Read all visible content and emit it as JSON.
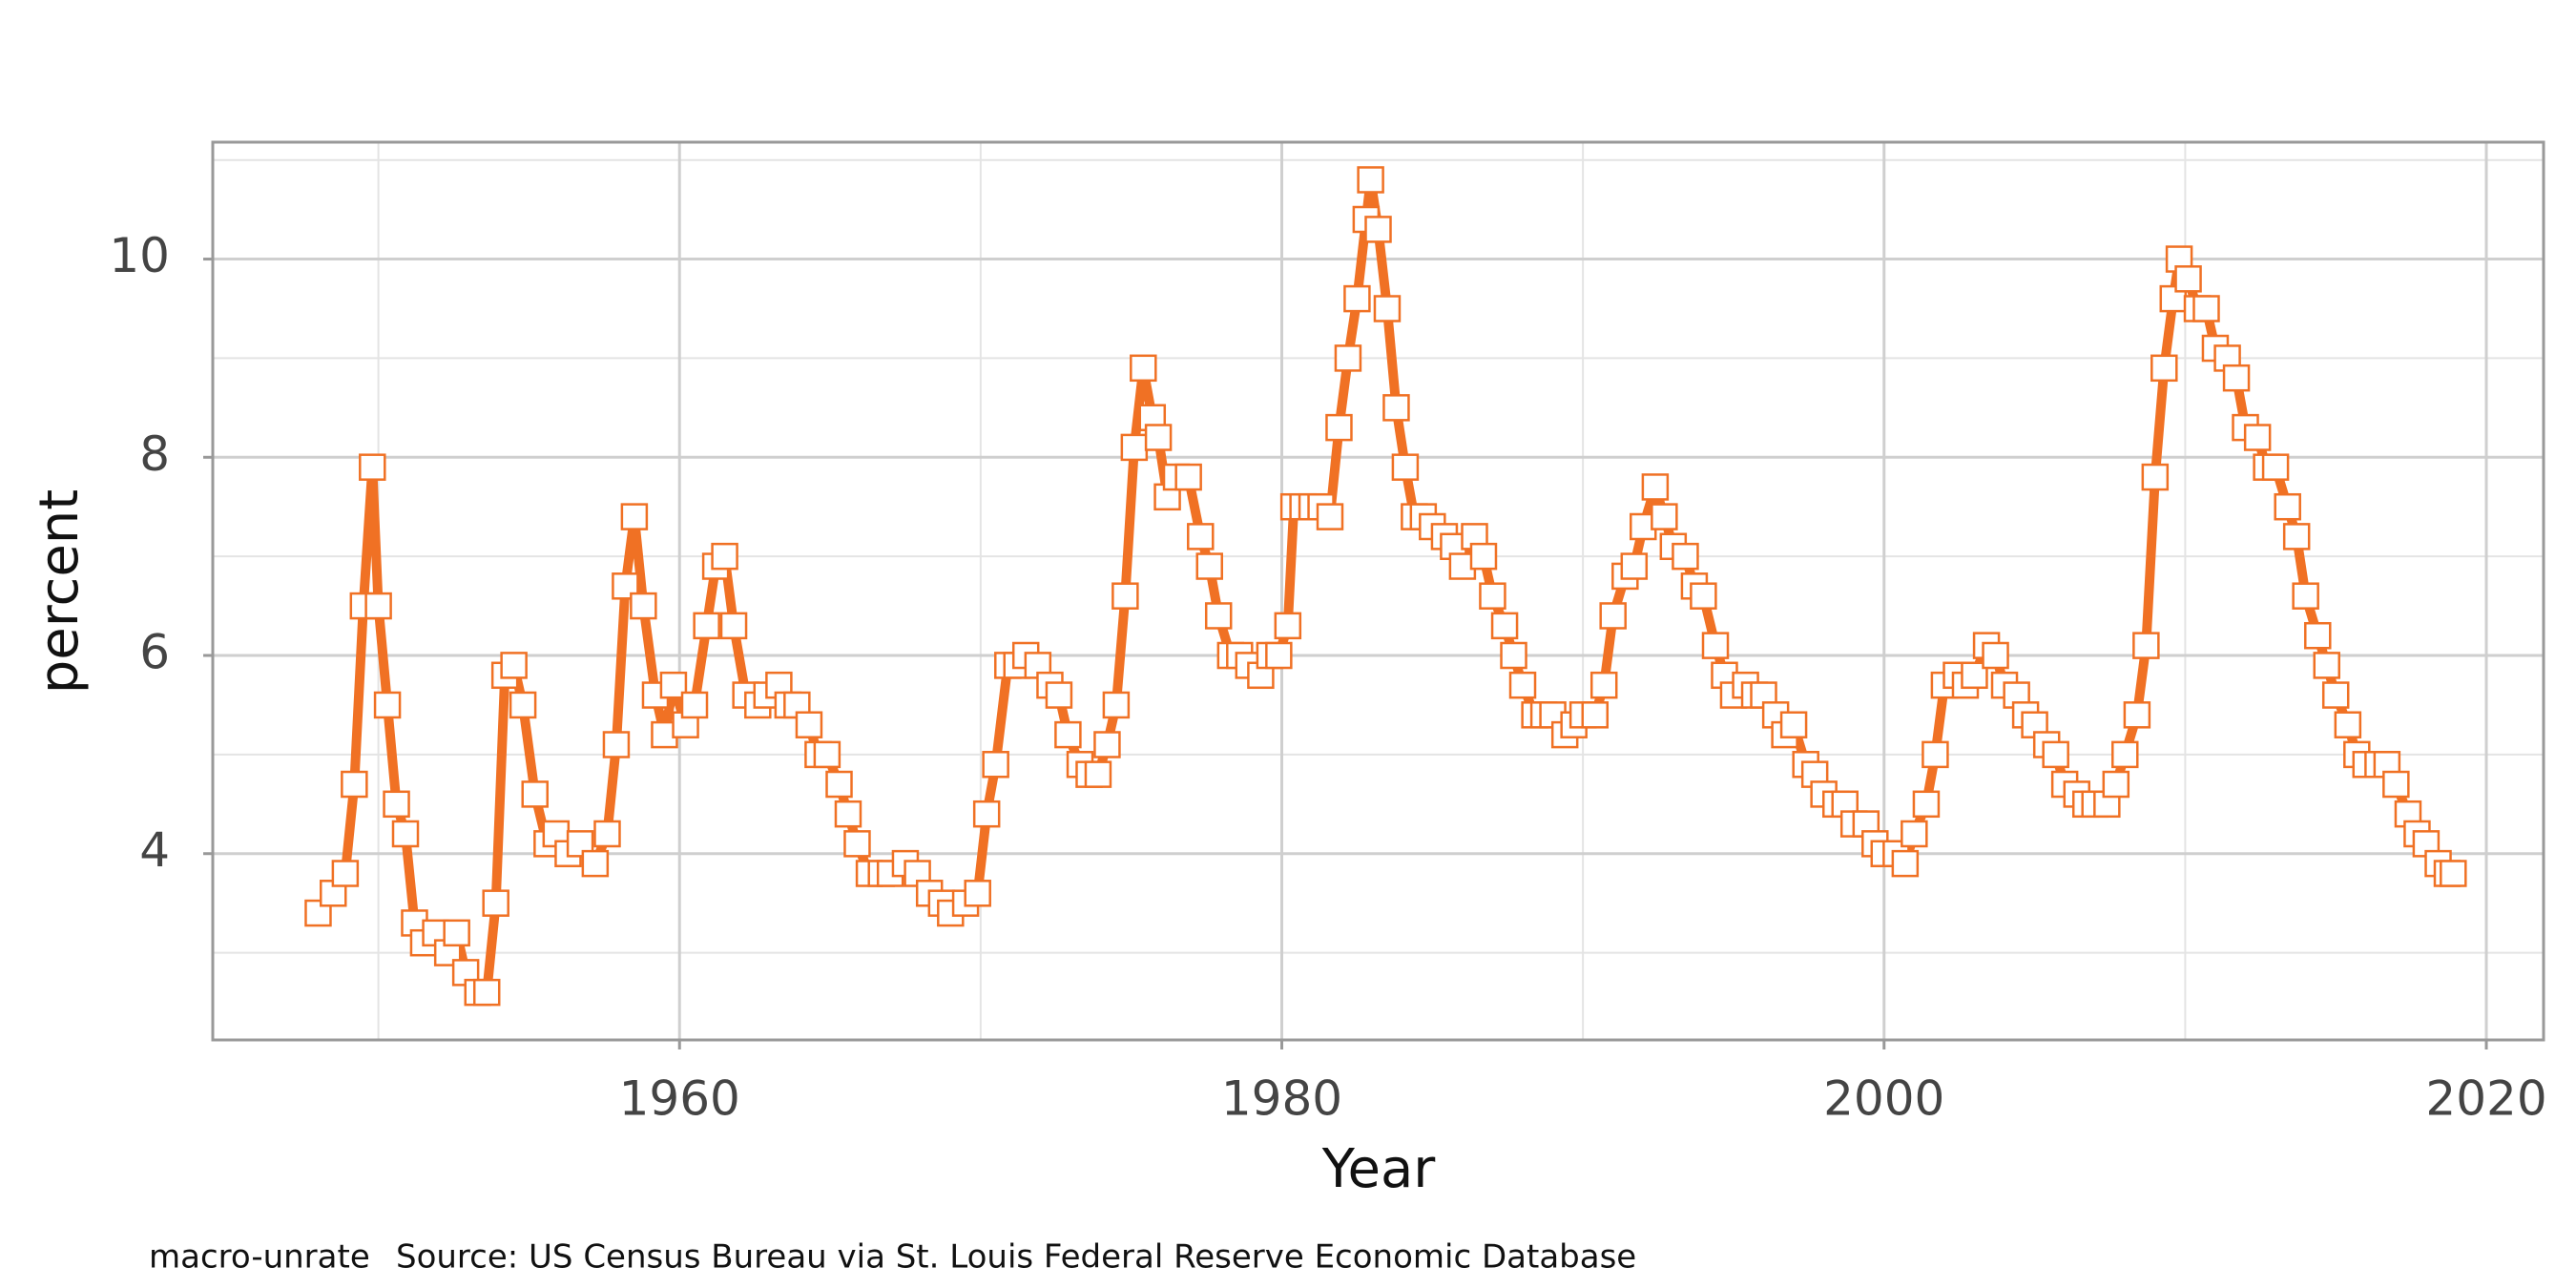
{
  "chart_data": {
    "type": "line",
    "xlabel": "Year",
    "ylabel": "percent",
    "caption": "macro-unrate",
    "source": "Source: US Census Bureau via St. Louis Federal Reserve Economic Database",
    "xlim": [
      1944.5,
      2021.9
    ],
    "ylim": [
      2.12,
      11.18
    ],
    "xticks": [
      1960,
      1980,
      2000,
      2020
    ],
    "yticks": [
      4,
      6,
      8,
      10
    ],
    "xminor": [
      1950,
      1970,
      1990,
      2010
    ],
    "yminor": [
      3,
      5,
      7,
      9,
      11
    ],
    "grid": true,
    "series": [
      {
        "color": "#f07124",
        "x": [
          1948.0,
          1948.5,
          1948.9,
          1949.2,
          1949.5,
          1949.8,
          1950.0,
          1950.3,
          1950.6,
          1950.9,
          1951.2,
          1951.5,
          1951.9,
          1952.3,
          1952.6,
          1952.9,
          1953.3,
          1953.6,
          1953.9,
          1954.2,
          1954.5,
          1954.8,
          1955.2,
          1955.6,
          1955.9,
          1956.3,
          1956.7,
          1957.2,
          1957.6,
          1957.9,
          1958.2,
          1958.5,
          1958.8,
          1959.2,
          1959.5,
          1959.8,
          1960.2,
          1960.5,
          1960.9,
          1961.2,
          1961.5,
          1961.8,
          1962.2,
          1962.6,
          1962.9,
          1963.3,
          1963.6,
          1963.9,
          1964.3,
          1964.6,
          1964.9,
          1965.3,
          1965.6,
          1965.9,
          1966.3,
          1966.7,
          1967.0,
          1967.5,
          1967.9,
          1968.3,
          1968.7,
          1969.0,
          1969.5,
          1969.9,
          1970.2,
          1970.5,
          1970.9,
          1971.2,
          1971.5,
          1971.9,
          1972.3,
          1972.6,
          1972.9,
          1973.3,
          1973.6,
          1973.9,
          1974.2,
          1974.5,
          1974.8,
          1975.1,
          1975.4,
          1975.7,
          1975.9,
          1976.2,
          1976.5,
          1976.9,
          1977.3,
          1977.6,
          1977.9,
          1978.3,
          1978.6,
          1978.9,
          1979.3,
          1979.6,
          1979.9,
          1980.2,
          1980.4,
          1980.7,
          1981.0,
          1981.3,
          1981.6,
          1981.9,
          1982.2,
          1982.5,
          1982.8,
          1982.95,
          1983.2,
          1983.5,
          1983.8,
          1984.1,
          1984.4,
          1984.7,
          1985.0,
          1985.4,
          1985.7,
          1986.0,
          1986.4,
          1986.7,
          1987.0,
          1987.4,
          1987.7,
          1988.0,
          1988.4,
          1988.7,
          1989.0,
          1989.4,
          1989.7,
          1990.0,
          1990.4,
          1990.7,
          1991.0,
          1991.4,
          1991.7,
          1992.0,
          1992.4,
          1992.7,
          1993.0,
          1993.4,
          1993.7,
          1994.0,
          1994.4,
          1994.7,
          1995.0,
          1995.4,
          1995.7,
          1996.0,
          1996.4,
          1996.7,
          1997.0,
          1997.4,
          1997.7,
          1998.0,
          1998.4,
          1998.7,
          1999.0,
          1999.4,
          1999.7,
          2000.0,
          2000.4,
          2000.7,
          2001.0,
          2001.4,
          2001.7,
          2002.0,
          2002.4,
          2002.7,
          2003.0,
          2003.4,
          2003.7,
          2004.0,
          2004.4,
          2004.7,
          2005.0,
          2005.4,
          2005.7,
          2006.0,
          2006.4,
          2006.7,
          2007.0,
          2007.4,
          2007.7,
          2008.0,
          2008.4,
          2008.7,
          2009.0,
          2009.3,
          2009.6,
          2009.8,
          2010.1,
          2010.4,
          2010.7,
          2011.0,
          2011.4,
          2011.7,
          2012.0,
          2012.4,
          2012.7,
          2013.0,
          2013.4,
          2013.7,
          2014.0,
          2014.4,
          2014.7,
          2015.0,
          2015.4,
          2015.7,
          2016.0,
          2016.4,
          2016.7,
          2017.0,
          2017.4,
          2017.7,
          2018.0,
          2018.4,
          2018.7,
          2018.9
        ],
        "values": [
          3.4,
          3.6,
          3.8,
          4.7,
          6.5,
          7.9,
          6.5,
          5.5,
          4.5,
          4.2,
          3.3,
          3.1,
          3.2,
          3.0,
          3.2,
          2.8,
          2.6,
          2.6,
          3.5,
          5.8,
          5.9,
          5.5,
          4.6,
          4.1,
          4.2,
          4.0,
          4.1,
          3.9,
          4.2,
          5.1,
          6.7,
          7.4,
          6.5,
          5.6,
          5.2,
          5.7,
          5.3,
          5.5,
          6.3,
          6.9,
          7.0,
          6.3,
          5.6,
          5.5,
          5.6,
          5.7,
          5.5,
          5.5,
          5.3,
          5.0,
          5.0,
          4.7,
          4.4,
          4.1,
          3.8,
          3.8,
          3.8,
          3.9,
          3.8,
          3.6,
          3.5,
          3.4,
          3.5,
          3.6,
          4.4,
          4.9,
          5.9,
          5.9,
          6.0,
          5.9,
          5.7,
          5.6,
          5.2,
          4.9,
          4.8,
          4.8,
          5.1,
          5.5,
          6.6,
          8.1,
          8.9,
          8.4,
          8.2,
          7.6,
          7.8,
          7.8,
          7.2,
          6.9,
          6.4,
          6.0,
          6.0,
          5.9,
          5.8,
          6.0,
          6.0,
          6.3,
          7.5,
          7.5,
          7.5,
          7.5,
          7.4,
          8.3,
          9.0,
          9.6,
          10.4,
          10.8,
          10.3,
          9.5,
          8.5,
          7.9,
          7.4,
          7.4,
          7.3,
          7.2,
          7.1,
          6.9,
          7.2,
          7.0,
          6.6,
          6.3,
          6.0,
          5.7,
          5.4,
          5.4,
          5.4,
          5.2,
          5.3,
          5.4,
          5.4,
          5.7,
          6.4,
          6.8,
          6.9,
          7.3,
          7.7,
          7.4,
          7.1,
          7.0,
          6.7,
          6.6,
          6.1,
          5.8,
          5.6,
          5.7,
          5.6,
          5.6,
          5.4,
          5.2,
          5.3,
          4.9,
          4.8,
          4.6,
          4.5,
          4.5,
          4.3,
          4.3,
          4.1,
          4.0,
          4.0,
          3.9,
          4.2,
          4.5,
          5.0,
          5.7,
          5.8,
          5.7,
          5.8,
          6.1,
          6.0,
          5.7,
          5.6,
          5.4,
          5.3,
          5.1,
          5.0,
          4.7,
          4.6,
          4.5,
          4.5,
          4.5,
          4.7,
          5.0,
          5.4,
          6.1,
          7.8,
          8.9,
          9.6,
          10.0,
          9.8,
          9.5,
          9.5,
          9.1,
          9.0,
          8.8,
          8.3,
          8.2,
          7.9,
          7.9,
          7.5,
          7.2,
          6.6,
          6.2,
          5.9,
          5.6,
          5.3,
          5.0,
          4.9,
          4.9,
          4.9,
          4.7,
          4.4,
          4.2,
          4.1,
          3.9,
          3.8,
          3.8
        ]
      }
    ]
  }
}
